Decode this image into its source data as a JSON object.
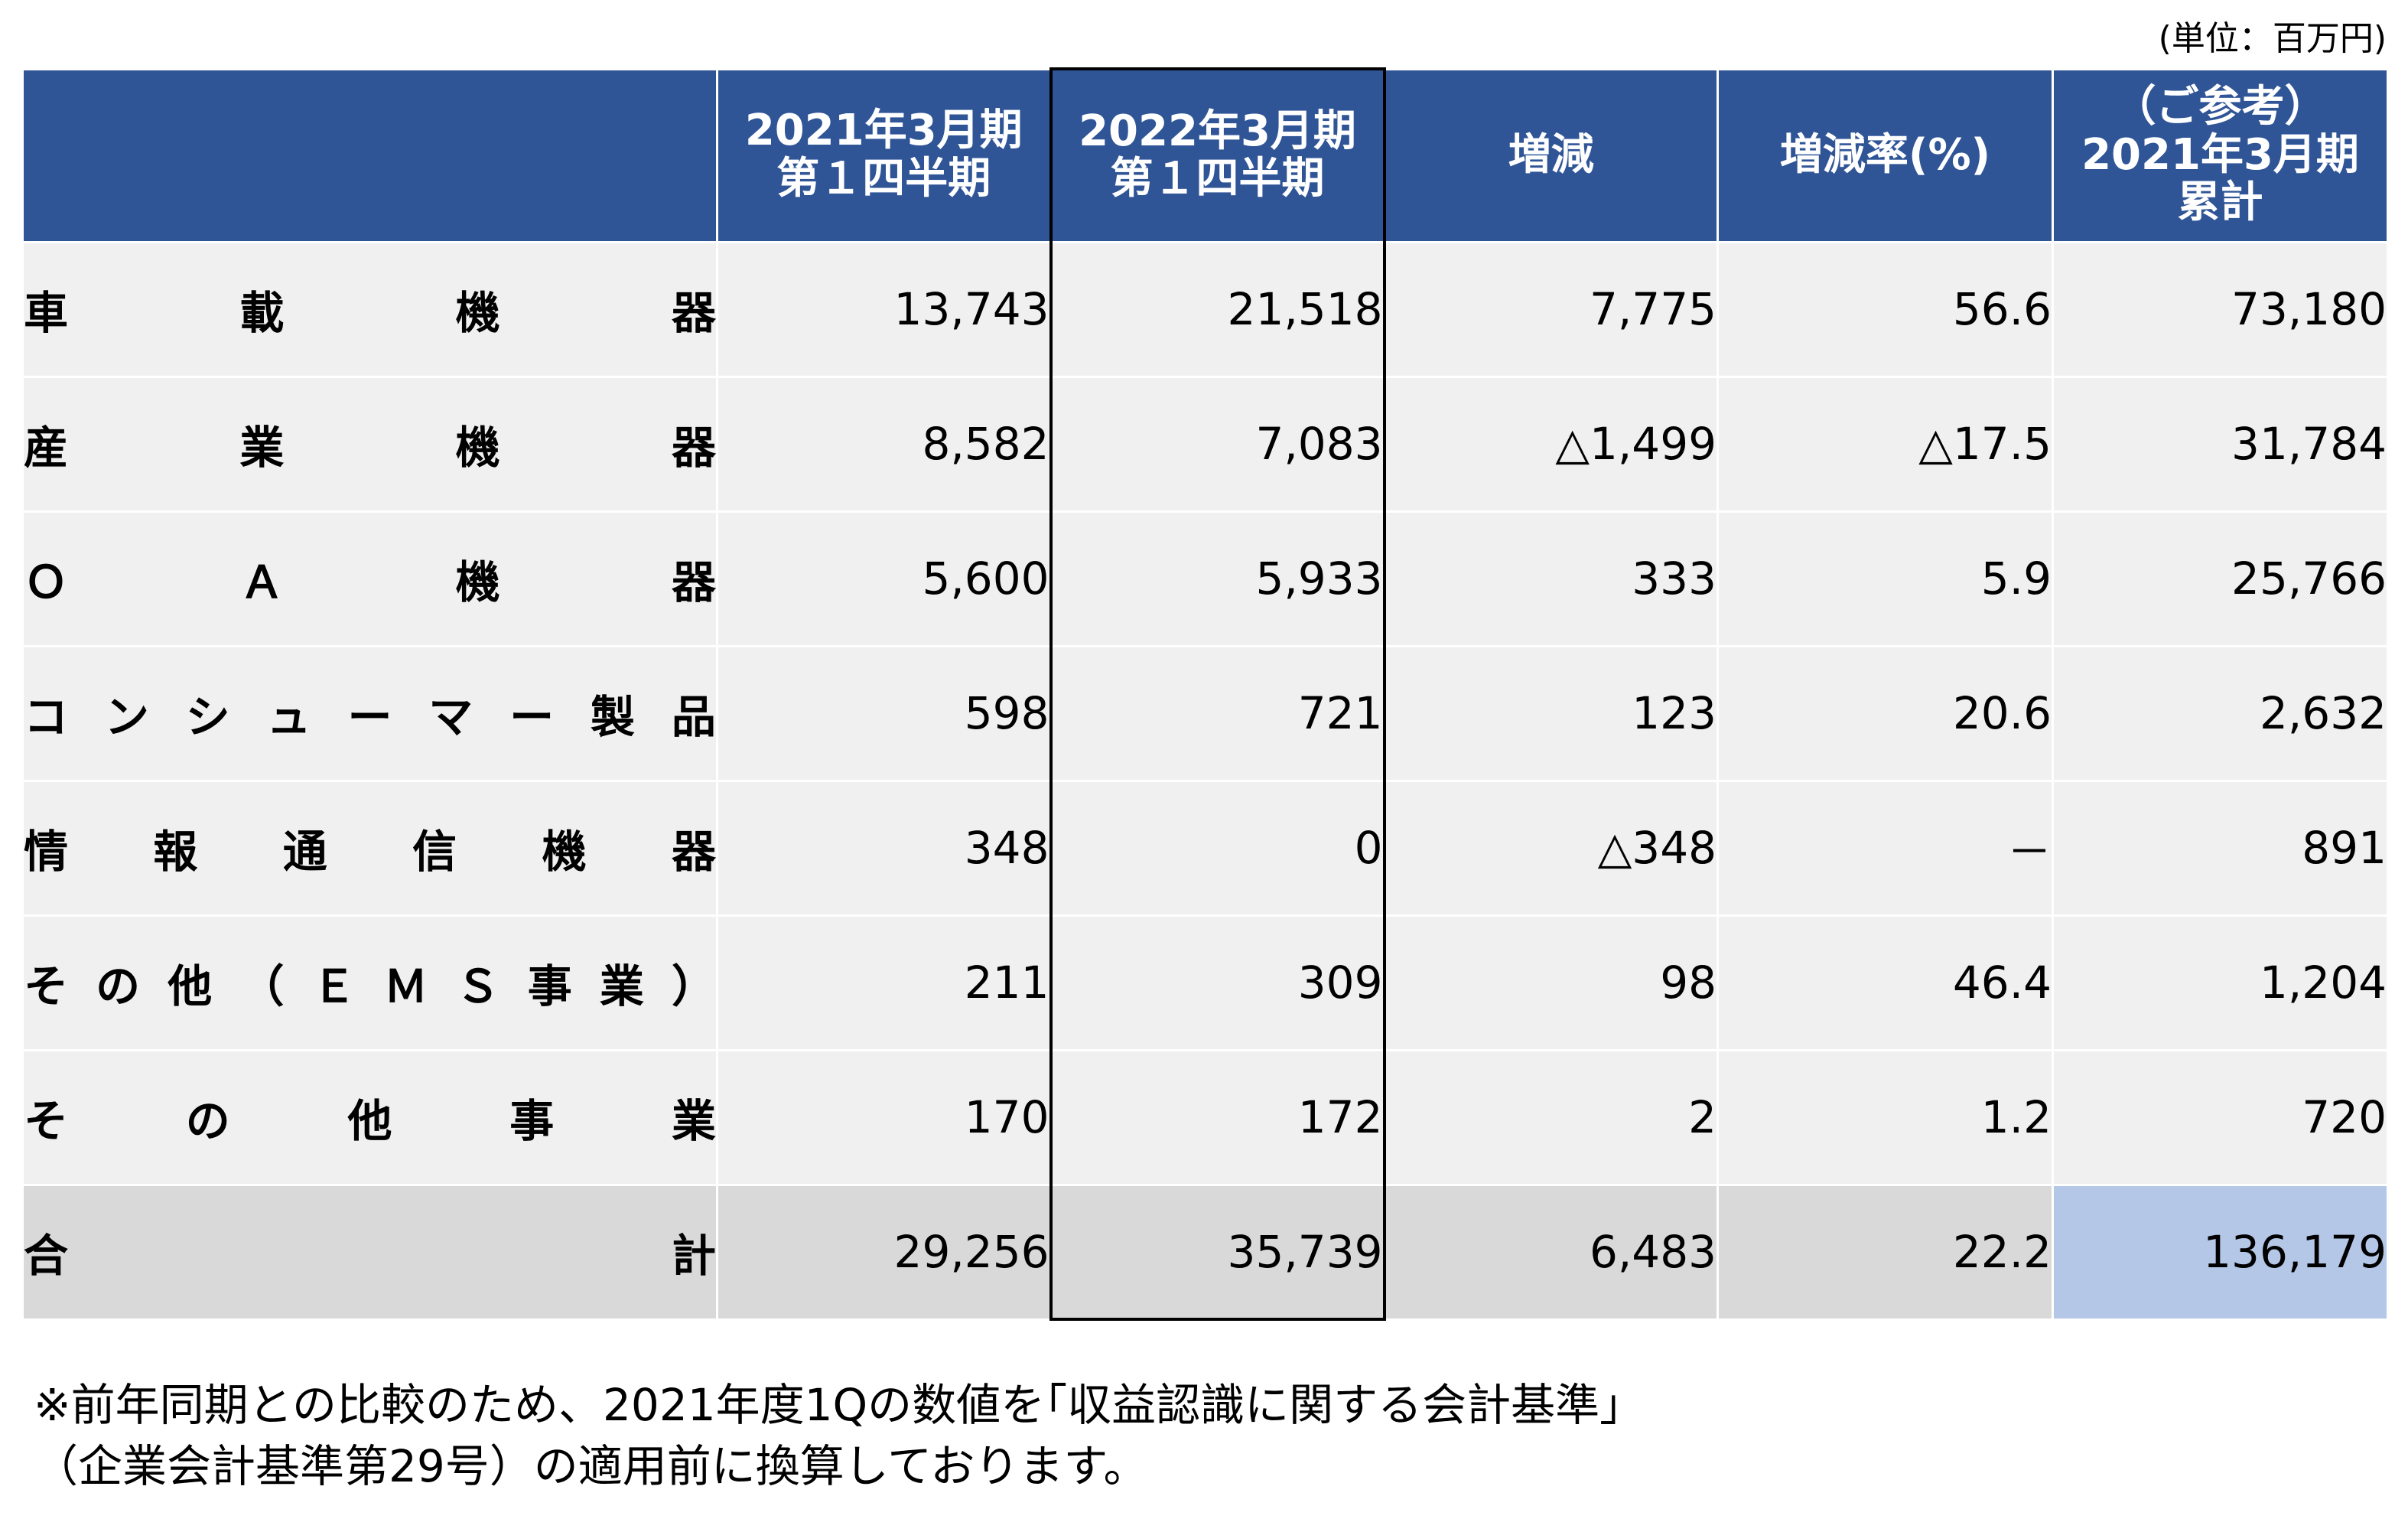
{
  "unit_label": "(単位：百万円)",
  "headers": {
    "col1": {
      "line1": "2021年3月期",
      "line2": "第１四半期"
    },
    "col2": {
      "line1": "2022年3月期",
      "line2": "第１四半期"
    },
    "col3": "増減",
    "col4": "増減率(%)",
    "col5": {
      "line1": "（ご参考）",
      "line2": "2021年3月期",
      "line3": "累計"
    }
  },
  "rows": [
    {
      "label_parts": [
        "車",
        "載",
        "機",
        "器"
      ],
      "v1": "13,743",
      "v2": "21,518",
      "v3": "7,775",
      "v4": "56.6",
      "v5": "73,180"
    },
    {
      "label_parts": [
        "産",
        "業",
        "機",
        "器"
      ],
      "v1": "8,582",
      "v2": "7,083",
      "v3": "△1,499",
      "v4": "△17.5",
      "v5": "31,784"
    },
    {
      "label_parts": [
        "Ｏ",
        "Ａ",
        "機",
        "器"
      ],
      "v1": "5,600",
      "v2": "5,933",
      "v3": "333",
      "v4": "5.9",
      "v5": "25,766"
    },
    {
      "label_parts": [
        "コ",
        "ン",
        "シ",
        "ュ",
        "ー",
        "マ",
        "ー",
        "製",
        "品"
      ],
      "v1": "598",
      "v2": "721",
      "v3": "123",
      "v4": "20.6",
      "v5": "2,632"
    },
    {
      "label_parts": [
        "情",
        "報",
        "通",
        "信",
        "機",
        "器"
      ],
      "v1": "348",
      "v2": "0",
      "v3": "△348",
      "v4": "－",
      "v5": "891"
    },
    {
      "label_parts": [
        "そ",
        "の",
        "他",
        "（",
        "Ｅ",
        "Ｍ",
        "Ｓ",
        "事",
        "業",
        "）"
      ],
      "v1": "211",
      "v2": "309",
      "v3": "98",
      "v4": "46.4",
      "v5": "1,204"
    },
    {
      "label_parts": [
        "そ",
        "の",
        "他",
        "事",
        "業"
      ],
      "v1": "170",
      "v2": "172",
      "v3": "2",
      "v4": "1.2",
      "v5": "720"
    }
  ],
  "total": {
    "label_parts": [
      "合",
      "計"
    ],
    "v1": "29,256",
    "v2": "35,739",
    "v3": "6,483",
    "v4": "22.2",
    "v5": "136,179"
  },
  "note": {
    "line1": "※前年同期との比較のため、2021年度1Qの数値を｢収益認識に関する会計基準｣",
    "line2": "（企業会計基準第29号）の適用前に換算しております。"
  }
}
